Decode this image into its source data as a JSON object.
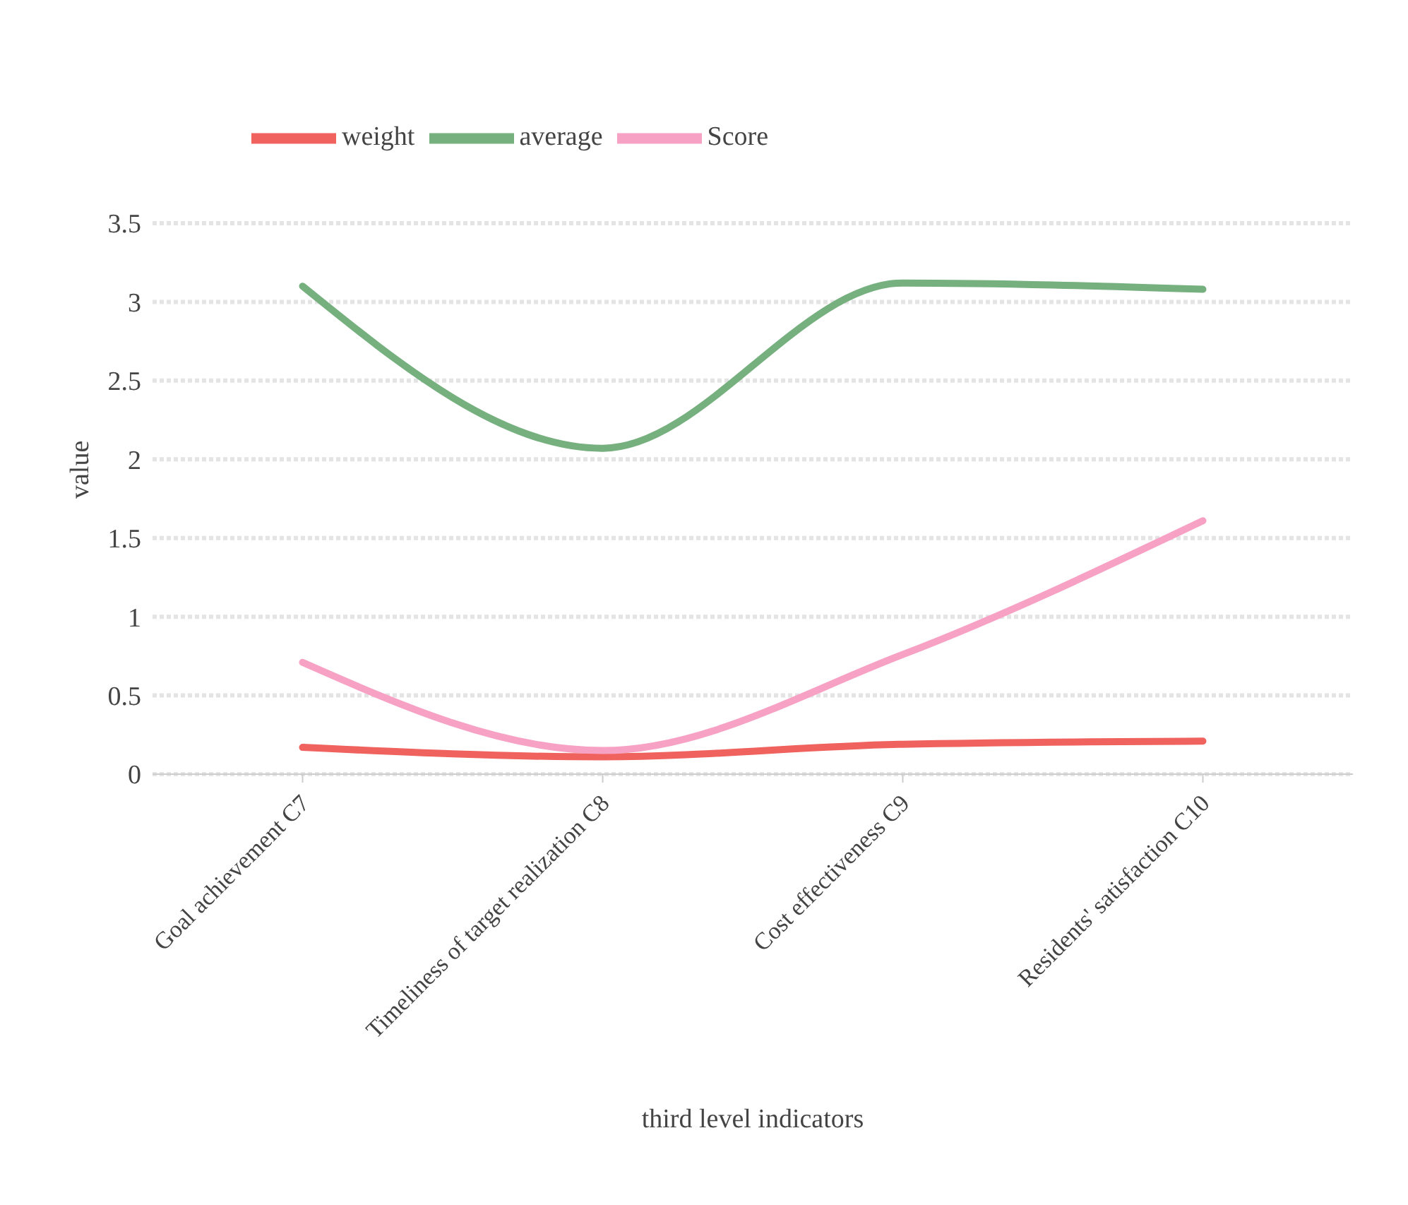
{
  "chart_data": {
    "type": "line",
    "xlabel": "third level indicators",
    "ylabel": "value",
    "categories": [
      "Goal achievement C7",
      "Timeliness of target realization C8",
      "Cost effectiveness C9",
      "Residents' satisfaction C10"
    ],
    "series": [
      {
        "name": "weight",
        "color": "#f0625e",
        "values": [
          0.17,
          0.11,
          0.19,
          0.21
        ]
      },
      {
        "name": "average",
        "color": "#76b07f",
        "values": [
          3.1,
          2.07,
          3.12,
          3.08
        ]
      },
      {
        "name": "Score",
        "color": "#f7a1c4",
        "values": [
          0.71,
          0.15,
          0.76,
          1.61
        ]
      }
    ],
    "ylim": [
      0,
      3.5
    ],
    "yticks": [
      0,
      0.5,
      1,
      1.5,
      2,
      2.5,
      3,
      3.5
    ],
    "grid": "y",
    "legend": "top left",
    "marker": "none",
    "line_style": "solid"
  }
}
